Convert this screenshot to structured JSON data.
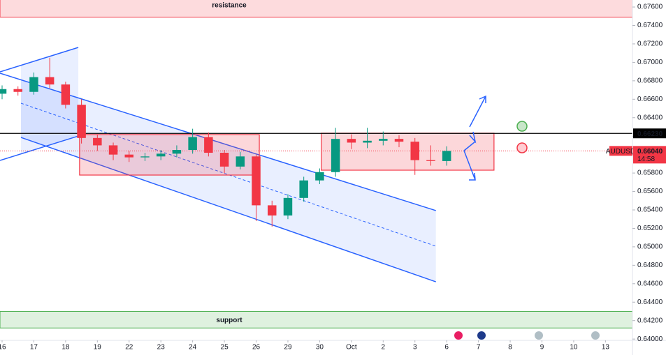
{
  "chart_data": {
    "type": "candlestick",
    "symbol": "AUDUSD",
    "x": [
      0,
      0.5,
      1,
      1.5,
      2,
      2.5,
      3,
      3.5,
      4,
      4.5,
      5,
      5.5,
      6,
      6.5,
      7,
      7.5,
      8,
      8.5,
      9,
      9.5,
      10,
      10.5,
      11,
      11.5,
      12,
      12.5,
      13,
      13.5,
      14
    ],
    "open": [
      0.6666,
      0.6671,
      0.6668,
      0.6684,
      0.6676,
      0.6654,
      0.6618,
      0.661,
      0.66,
      0.6597,
      0.6598,
      0.6601,
      0.6605,
      0.6619,
      0.6602,
      0.6587,
      0.6598,
      0.6545,
      0.6534,
      0.6553,
      0.6572,
      0.6581,
      0.6617,
      0.6613,
      0.6615,
      0.6617,
      0.6614,
      0.6594,
      0.6593
    ],
    "high": [
      0.6675,
      0.6674,
      0.6689,
      0.6705,
      0.6679,
      0.666,
      0.6622,
      0.6613,
      0.6604,
      0.6602,
      0.6605,
      0.661,
      0.6628,
      0.6624,
      0.6605,
      0.6603,
      0.66,
      0.655,
      0.6557,
      0.6576,
      0.6585,
      0.6629,
      0.6622,
      0.6629,
      0.6625,
      0.6621,
      0.6618,
      0.661,
      0.6609
    ],
    "low": [
      0.666,
      0.6664,
      0.6665,
      0.6672,
      0.665,
      0.6612,
      0.6604,
      0.6594,
      0.6592,
      0.6593,
      0.6594,
      0.6597,
      0.6601,
      0.6598,
      0.658,
      0.6584,
      0.6528,
      0.6522,
      0.653,
      0.6549,
      0.6568,
      0.6576,
      0.6606,
      0.6607,
      0.661,
      0.6608,
      0.6578,
      0.6588,
      0.6588
    ],
    "close": [
      0.6671,
      0.6668,
      0.6684,
      0.6676,
      0.6654,
      0.6618,
      0.661,
      0.66,
      0.6597,
      0.6598,
      0.6601,
      0.6605,
      0.6619,
      0.6602,
      0.6587,
      0.6598,
      0.6545,
      0.6534,
      0.6553,
      0.6572,
      0.6581,
      0.6617,
      0.6613,
      0.6615,
      0.6617,
      0.6614,
      0.6594,
      0.6593,
      0.6604
    ],
    "up_color": "#089981",
    "down_color": "#f23645",
    "xlim": [
      -0.066,
      19.85
    ],
    "ylim": [
      0.63986,
      0.67676
    ],
    "xticks": [
      {
        "value": 0,
        "label": "16"
      },
      {
        "value": 1,
        "label": "17"
      },
      {
        "value": 2,
        "label": "18"
      },
      {
        "value": 3,
        "label": "19"
      },
      {
        "value": 4,
        "label": "22"
      },
      {
        "value": 5,
        "label": "23"
      },
      {
        "value": 6,
        "label": "24"
      },
      {
        "value": 7,
        "label": "25"
      },
      {
        "value": 8,
        "label": "26"
      },
      {
        "value": 9,
        "label": "29"
      },
      {
        "value": 10,
        "label": "30"
      },
      {
        "value": 11,
        "label": "Oct"
      },
      {
        "value": 12,
        "label": "2"
      },
      {
        "value": 13,
        "label": "3"
      },
      {
        "value": 14,
        "label": "6"
      },
      {
        "value": 15,
        "label": "7"
      },
      {
        "value": 16,
        "label": "8"
      },
      {
        "value": 17,
        "label": "9"
      },
      {
        "value": 18,
        "label": "10"
      },
      {
        "value": 19,
        "label": "13"
      }
    ],
    "yticks": [
      {
        "value": 0.64,
        "label": "0.64000"
      },
      {
        "value": 0.642,
        "label": "0.64200"
      },
      {
        "value": 0.644,
        "label": "0.64400"
      },
      {
        "value": 0.646,
        "label": "0.64600"
      },
      {
        "value": 0.648,
        "label": "0.64800"
      },
      {
        "value": 0.65,
        "label": "0.65000"
      },
      {
        "value": 0.652,
        "label": "0.65200"
      },
      {
        "value": 0.654,
        "label": "0.65400"
      },
      {
        "value": 0.656,
        "label": "0.65600"
      },
      {
        "value": 0.658,
        "label": "0.65800"
      },
      {
        "value": 0.66,
        "label": "0.66000"
      },
      {
        "value": 0.662,
        "label": "0.66200"
      },
      {
        "value": 0.664,
        "label": "0.66400"
      },
      {
        "value": 0.666,
        "label": "0.66600"
      },
      {
        "value": 0.668,
        "label": "0.66800"
      },
      {
        "value": 0.67,
        "label": "0.67000"
      },
      {
        "value": 0.672,
        "label": "0.67200"
      },
      {
        "value": 0.674,
        "label": "0.67400"
      },
      {
        "value": 0.676,
        "label": "0.67600"
      }
    ],
    "level": {
      "value": 0.6623,
      "value_label": "0.66230",
      "color": "#000000"
    },
    "last_price": {
      "value": 0.6604,
      "value_label": "0.66040",
      "timer": "14:58",
      "color": "#f23645"
    },
    "zones": [
      {
        "name": "resistance",
        "ylim": [
          0.6749,
          0.6776
        ],
        "color": "#f23645"
      },
      {
        "name": "support",
        "ylim": [
          0.6412,
          0.643
        ],
        "color": "#4caf50"
      }
    ],
    "rectangles": [
      {
        "xlim": [
          2.44,
          8.1
        ],
        "ylim": [
          0.65778,
          0.66217
        ]
      },
      {
        "xlim": [
          10.05,
          15.49
        ],
        "ylim": [
          0.65831,
          0.66232
        ]
      }
    ],
    "channels": [
      {
        "upper": [
          [
            -0.066,
            0.66897
          ],
          [
            2.4,
            0.67162
          ]
        ],
        "lower": [
          [
            -0.066,
            0.65937
          ],
          [
            2.4,
            0.66201
          ]
        ],
        "fill_from": 0.594
      },
      {
        "upper": [
          [
            -0.066,
            0.66882
          ],
          [
            13.66,
            0.65393
          ]
        ],
        "lower": [
          [
            0.594,
            0.66186
          ],
          [
            13.66,
            0.64621
          ]
        ],
        "mid": [
          [
            0.594,
            0.66557
          ],
          [
            13.66,
            0.65007
          ]
        ],
        "fill_from": 0.594
      }
    ]
  }
}
